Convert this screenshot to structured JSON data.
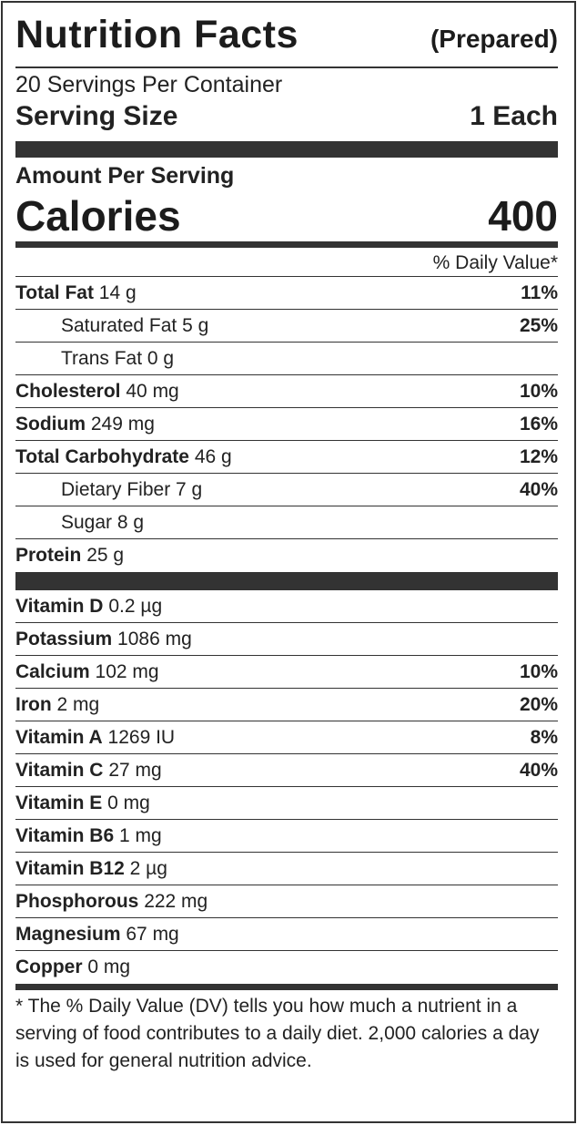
{
  "header": {
    "title": "Nutrition Facts",
    "subtitle": "(Prepared)"
  },
  "servings_per_container": "20 Servings Per Container",
  "serving_size": {
    "label": "Serving Size",
    "value": "1 Each"
  },
  "amount_per_serving": "Amount Per Serving",
  "calories": {
    "label": "Calories",
    "value": "400"
  },
  "daily_value_header": "% Daily Value*",
  "nutrients": [
    {
      "name": "Total Fat",
      "amount": "14 g",
      "dv": "11%",
      "indent": false
    },
    {
      "name": "Saturated Fat",
      "amount": "5 g",
      "dv": "25%",
      "indent": true
    },
    {
      "name": "Trans Fat",
      "amount": "0 g",
      "dv": "",
      "indent": true
    },
    {
      "name": "Cholesterol",
      "amount": "40 mg",
      "dv": "10%",
      "indent": false
    },
    {
      "name": "Sodium",
      "amount": "249 mg",
      "dv": "16%",
      "indent": false
    },
    {
      "name": "Total Carbohydrate",
      "amount": "46 g",
      "dv": "12%",
      "indent": false
    },
    {
      "name": "Dietary Fiber",
      "amount": "7 g",
      "dv": "40%",
      "indent": true
    },
    {
      "name": "Sugar",
      "amount": "8 g",
      "dv": "",
      "indent": true
    },
    {
      "name": "Protein",
      "amount": "25 g",
      "dv": "",
      "indent": false
    }
  ],
  "vitamins": [
    {
      "name": "Vitamin D",
      "amount": "0.2 µg",
      "dv": ""
    },
    {
      "name": "Potassium",
      "amount": "1086 mg",
      "dv": ""
    },
    {
      "name": "Calcium",
      "amount": "102 mg",
      "dv": "10%"
    },
    {
      "name": "Iron",
      "amount": "2 mg",
      "dv": "20%"
    },
    {
      "name": "Vitamin A",
      "amount": "1269 IU",
      "dv": "8%"
    },
    {
      "name": "Vitamin C",
      "amount": "27 mg",
      "dv": "40%"
    },
    {
      "name": "Vitamin E",
      "amount": "0 mg",
      "dv": ""
    },
    {
      "name": "Vitamin B6",
      "amount": "1 mg",
      "dv": ""
    },
    {
      "name": "Vitamin B12",
      "amount": "2 µg",
      "dv": ""
    },
    {
      "name": "Phosphorous",
      "amount": "222 mg",
      "dv": ""
    },
    {
      "name": "Magnesium",
      "amount": "67 mg",
      "dv": ""
    },
    {
      "name": "Copper",
      "amount": "0 mg",
      "dv": ""
    }
  ],
  "footnote": "* The % Daily Value (DV) tells you how much a nutrient in a serving of food contributes to a daily diet. 2,000 calories a day is used for general nutrition advice."
}
